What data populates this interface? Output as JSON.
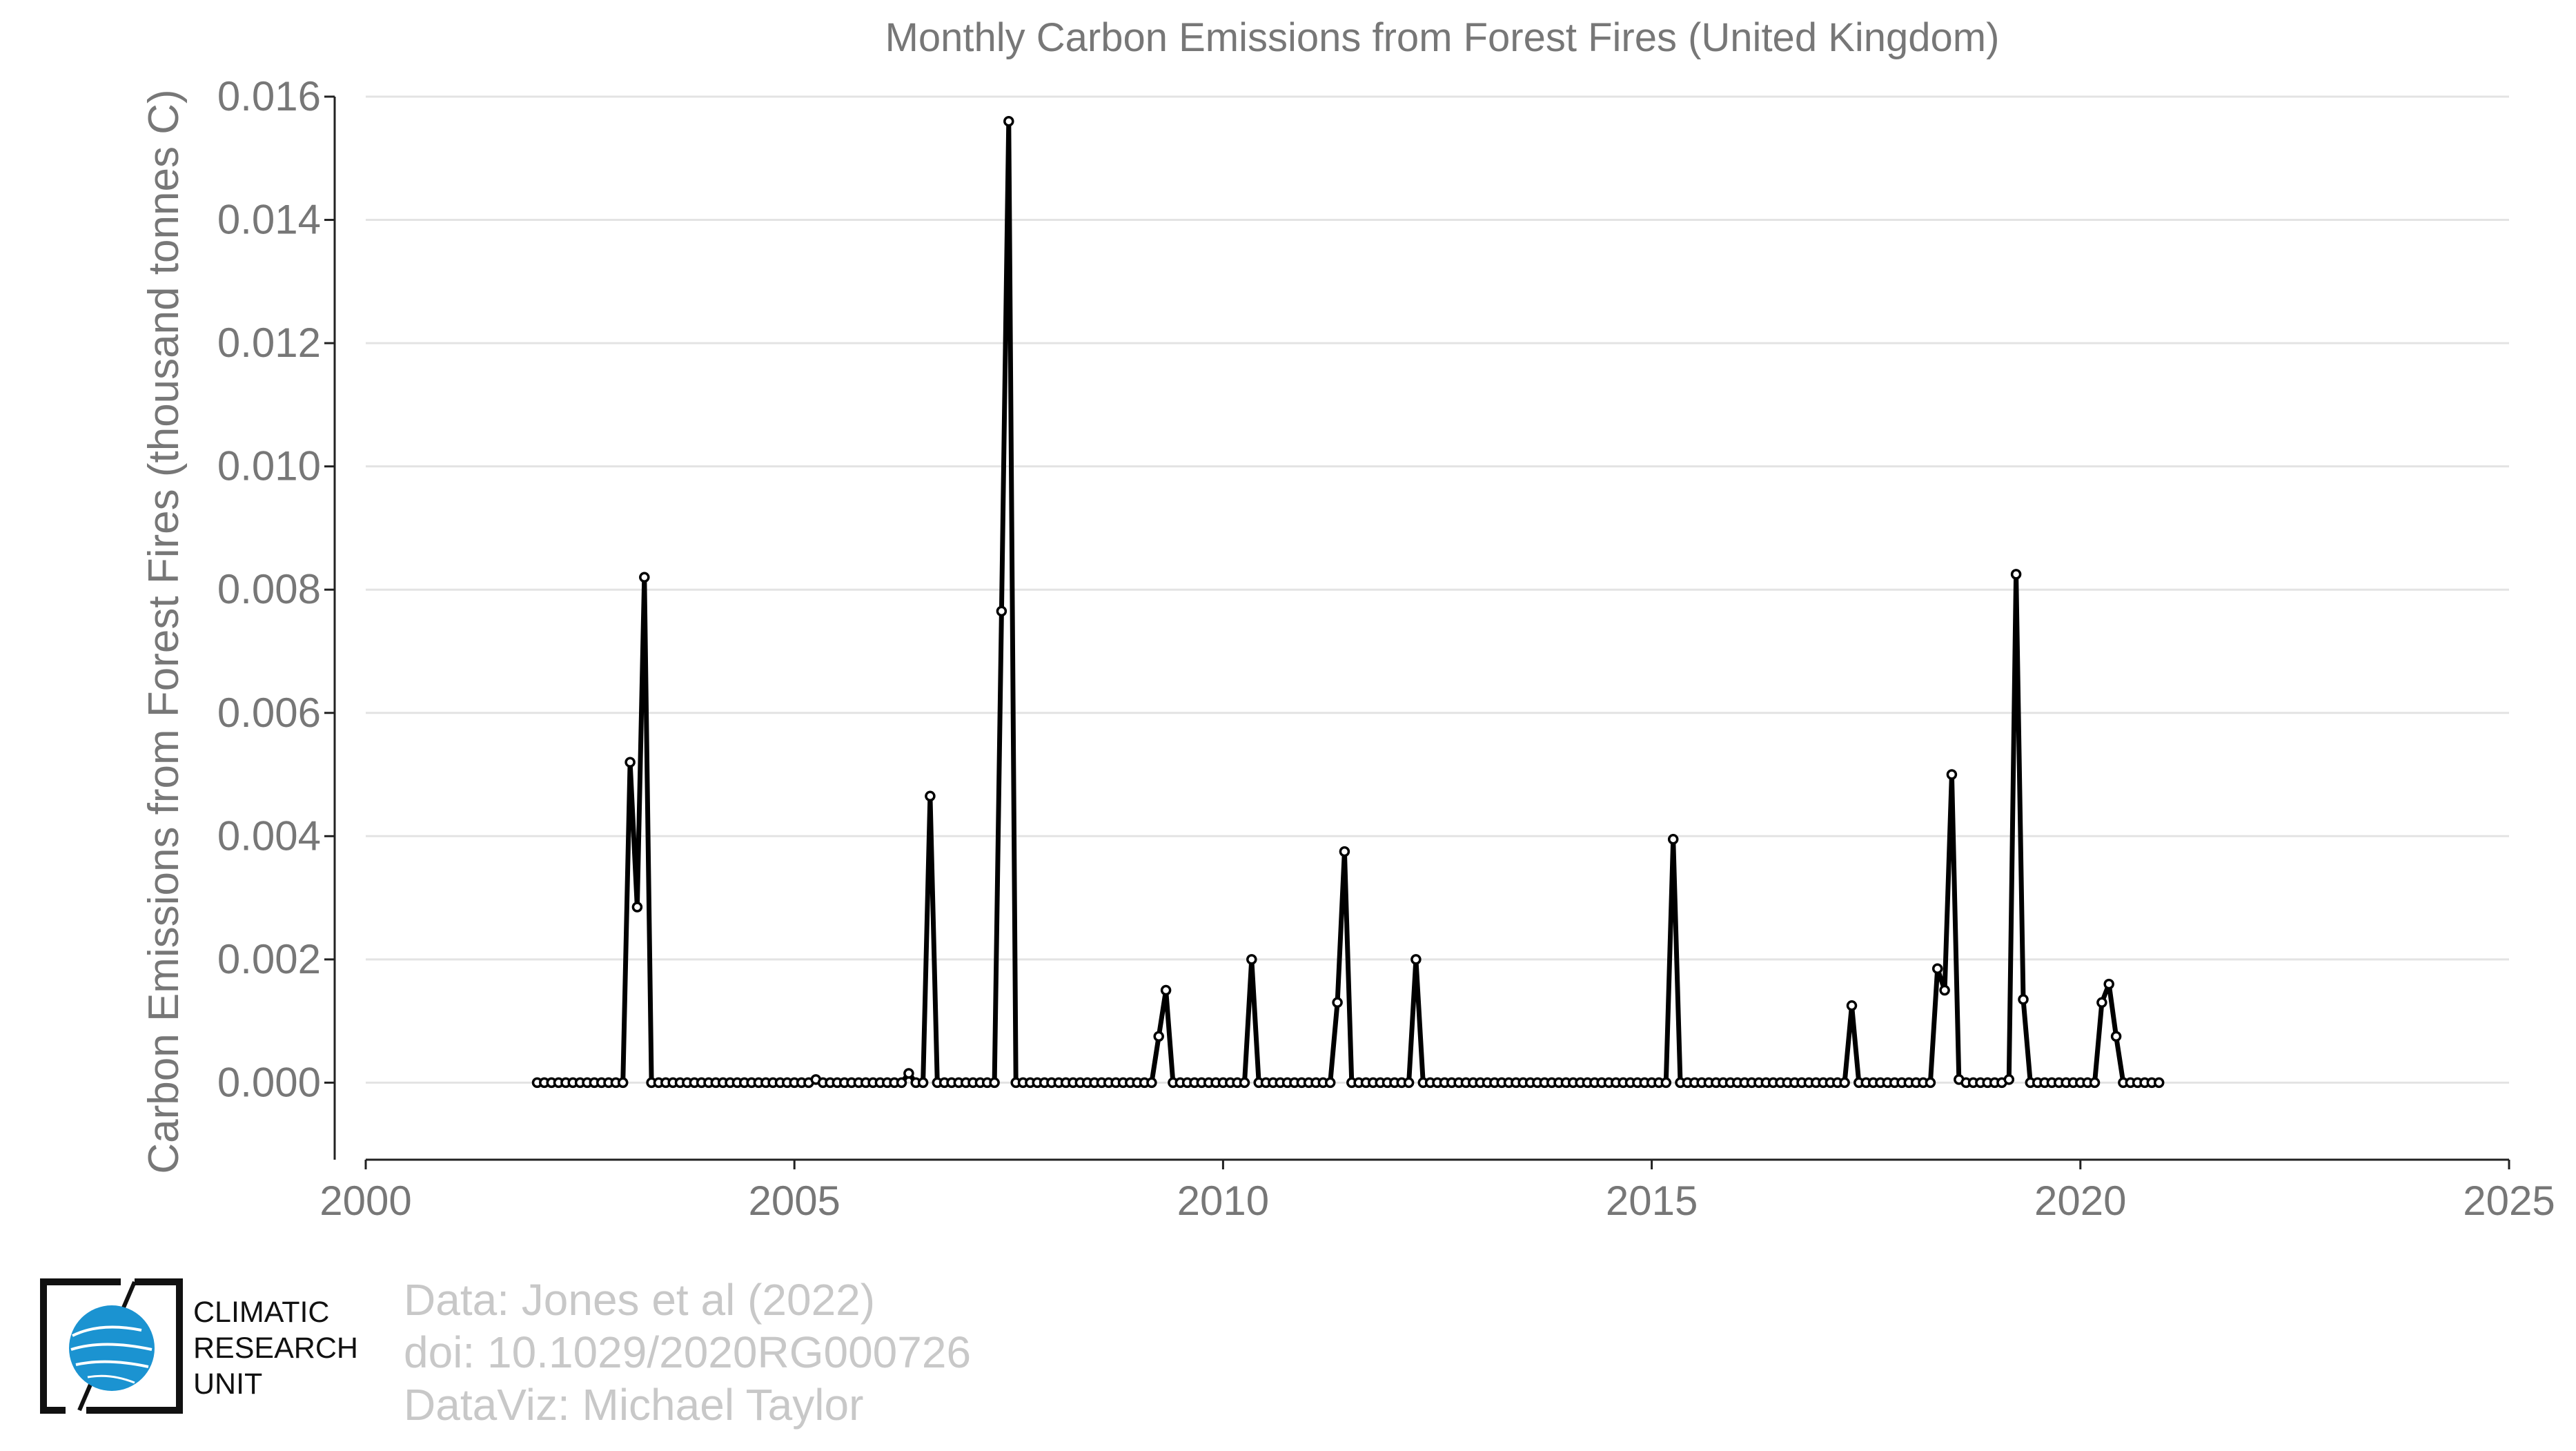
{
  "chart_data": {
    "type": "line",
    "title": "Monthly Carbon Emissions from Forest Fires (United Kingdom)",
    "xlabel": "",
    "ylabel": "Carbon Emissions from Forest Fires (thousand tonnes C)",
    "xlim": [
      2000,
      2025
    ],
    "ylim": [
      -0.00125,
      0.016
    ],
    "xticks": [
      2000,
      2005,
      2010,
      2015,
      2020,
      2025
    ],
    "yticks": [
      "0.000",
      "0.002",
      "0.004",
      "0.006",
      "0.008",
      "0.010",
      "0.012",
      "0.014",
      "0.016"
    ],
    "grid": "horizontal",
    "colors": {
      "line": "#000000",
      "marker_fill": "#ffffff",
      "text": "#777777",
      "grid": "#e3e3e3"
    },
    "x_start": "2002-01",
    "x_end": "2020-12",
    "x_step": "monthly",
    "values": [
      0,
      0,
      0,
      0,
      0,
      0,
      0,
      0,
      0,
      0,
      0,
      0,
      0,
      0.0052,
      0.00285,
      0.0082,
      0,
      0,
      0,
      0,
      0,
      0,
      0,
      0,
      0,
      0,
      0,
      0,
      0,
      0,
      0,
      0,
      0,
      0,
      0,
      0,
      0,
      0,
      0,
      5e-05,
      0,
      0,
      0,
      0,
      0,
      0,
      0,
      0,
      0,
      0,
      0,
      0,
      0.00015,
      0,
      0,
      0.00465,
      0,
      0,
      0,
      0,
      0,
      0,
      0,
      0,
      0,
      0.00765,
      0.0156,
      0,
      0,
      0,
      0,
      0,
      0,
      0,
      0,
      0,
      0,
      0,
      0,
      0,
      0,
      0,
      0,
      0,
      0,
      0,
      0,
      0.00075,
      0.0015,
      0,
      0,
      0,
      0,
      0,
      0,
      0,
      0,
      0,
      0,
      0,
      0.002,
      0,
      0,
      0,
      0,
      0,
      0,
      0,
      0,
      0,
      0,
      0,
      0.0013,
      0.00375,
      0,
      0,
      0,
      0,
      0,
      0,
      0,
      0,
      0,
      0.002,
      0,
      0,
      0,
      0,
      0,
      0,
      0,
      0,
      0,
      0,
      0,
      0,
      0,
      0,
      0,
      0,
      0,
      0,
      0,
      0,
      0,
      0,
      0,
      0,
      0,
      0,
      0,
      0,
      0,
      0,
      0,
      0,
      0,
      0,
      0,
      0.00395,
      0,
      0,
      0,
      0,
      0,
      0,
      0,
      0,
      0,
      0,
      0,
      0,
      0,
      0,
      0,
      0,
      0,
      0,
      0,
      0,
      0,
      0,
      0,
      0,
      0.00125,
      0,
      0,
      0,
      0,
      0,
      0,
      0,
      0,
      0,
      0,
      0,
      0.00185,
      0.0015,
      0.005,
      5e-05,
      0,
      0,
      0,
      0,
      0,
      0,
      5e-05,
      0.00825,
      0.00135,
      0,
      0,
      0,
      0,
      0,
      0,
      0,
      0,
      0,
      0,
      0.0013,
      0.0016,
      0.00075,
      0,
      0,
      0,
      0,
      0,
      0
    ]
  },
  "logo": {
    "name": "climatic-research-unit-logo",
    "lines": [
      "CLIMATIC",
      "RESEARCH",
      "UNIT"
    ]
  },
  "credits": {
    "data": "Data: Jones et al (2022)",
    "doi": "doi: 10.1029/2020RG000726",
    "dataviz": "DataViz: Michael Taylor"
  }
}
